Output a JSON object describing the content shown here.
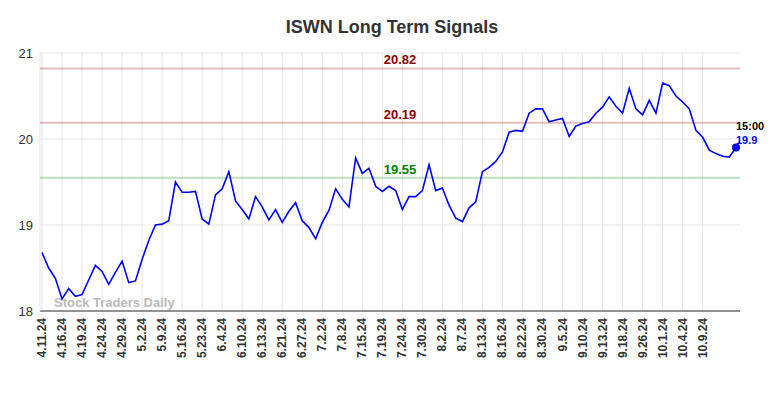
{
  "chart_data": {
    "type": "line",
    "title": "ISWN Long Term Signals",
    "watermark": "Stock Traders Daily",
    "last_time_label": "15:00",
    "color": "#0000ff",
    "grid": true,
    "ylim": [
      18,
      21
    ],
    "yticks": [
      18,
      19,
      20,
      21
    ],
    "reference_lines": [
      {
        "value": 20.82,
        "color": "#8b0000"
      },
      {
        "value": 20.19,
        "color": "#8b0000"
      },
      {
        "value": 19.55,
        "color": "#008000"
      }
    ],
    "categories": [
      "4.11.24",
      null,
      null,
      "4.16.24",
      null,
      null,
      "4.19.24",
      null,
      null,
      "4.24.24",
      null,
      null,
      "4.29.24",
      null,
      null,
      "5.2.24",
      null,
      null,
      "5.9.24",
      null,
      null,
      "5.16.24",
      null,
      null,
      "5.23.24",
      null,
      null,
      "6.4.24",
      null,
      null,
      "6.10.24",
      null,
      null,
      "6.13.24",
      null,
      null,
      "6.21.24",
      null,
      null,
      "6.27.24",
      null,
      null,
      "7.2.24",
      null,
      null,
      "7.8.24",
      null,
      null,
      "7.15.24",
      null,
      null,
      "7.19.24",
      null,
      null,
      "7.24.24",
      null,
      null,
      "7.30.24",
      null,
      null,
      "8.2.24",
      null,
      null,
      "8.7.24",
      null,
      null,
      "8.13.24",
      null,
      null,
      "8.16.24",
      null,
      null,
      "8.22.24",
      null,
      null,
      "8.30.24",
      null,
      null,
      "9.5.24",
      null,
      null,
      "9.10.24",
      null,
      null,
      "9.13.24",
      null,
      null,
      "9.18.24",
      null,
      null,
      "9.26.24",
      null,
      null,
      "10.1.24",
      null,
      null,
      "10.4.24",
      null,
      null,
      "10.9.24",
      null,
      null,
      null,
      null,
      null
    ],
    "values": [
      18.68,
      18.5,
      18.38,
      18.14,
      18.26,
      18.17,
      18.19,
      18.36,
      18.53,
      18.46,
      18.31,
      18.45,
      18.58,
      18.33,
      18.35,
      18.6,
      18.82,
      19.0,
      19.01,
      19.05,
      19.5,
      19.38,
      19.38,
      19.39,
      19.07,
      19.01,
      19.35,
      19.42,
      19.62,
      19.28,
      19.18,
      19.07,
      19.33,
      19.21,
      19.06,
      19.18,
      19.03,
      19.16,
      19.26,
      19.05,
      18.97,
      18.84,
      19.03,
      19.17,
      19.42,
      19.3,
      19.21,
      19.78,
      19.6,
      19.66,
      19.45,
      19.39,
      19.45,
      19.4,
      19.18,
      19.33,
      19.33,
      19.4,
      19.7,
      19.4,
      19.43,
      19.23,
      19.08,
      19.04,
      19.2,
      19.27,
      19.62,
      19.67,
      19.74,
      19.85,
      20.08,
      20.1,
      20.09,
      20.3,
      20.35,
      20.35,
      20.2,
      20.22,
      20.24,
      20.03,
      20.15,
      20.18,
      20.2,
      20.3,
      20.37,
      20.49,
      20.38,
      20.3,
      20.59,
      20.35,
      20.28,
      20.45,
      20.3,
      20.65,
      20.62,
      20.5,
      20.43,
      20.35,
      20.1,
      20.02,
      19.87,
      19.83,
      19.8,
      19.79,
      19.9
    ]
  }
}
